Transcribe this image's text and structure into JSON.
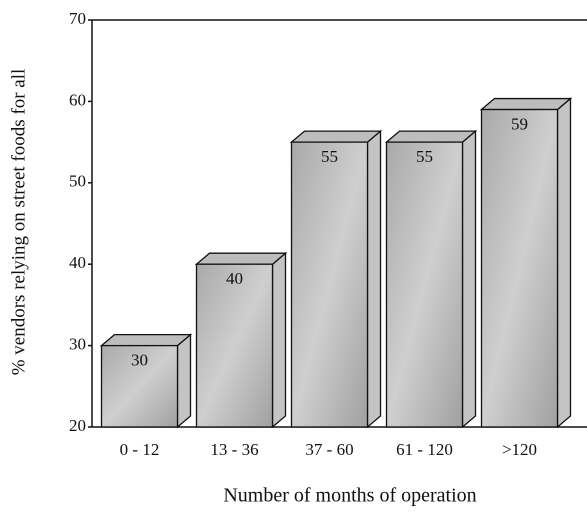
{
  "chart_data": {
    "type": "bar3d",
    "categories": [
      "0 - 12",
      "13 - 36",
      "37 - 60",
      "61 - 120",
      ">120"
    ],
    "values": [
      30,
      40,
      55,
      55,
      59
    ],
    "color": "#b5b5b5",
    "ylim": [
      20,
      70
    ],
    "yticks": [
      20,
      30,
      40,
      50,
      60,
      70
    ],
    "xlabel": "Number of months of operation",
    "ylabel": "% vendors relying on street foods for all"
  }
}
